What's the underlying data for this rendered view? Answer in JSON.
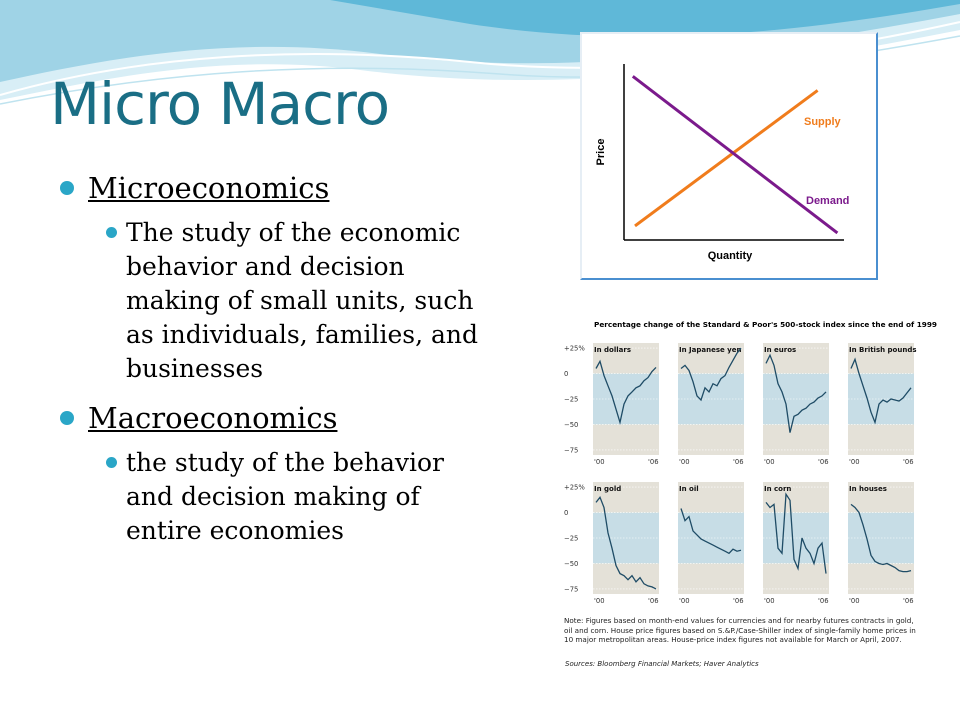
{
  "slide": {
    "title": "Micro Macro",
    "bullets": [
      {
        "heading": "Microeconomics",
        "detail": "The study of the economic behavior and decision making of small units, such as individuals, families, and businesses"
      },
      {
        "heading": "Macroeconomics",
        "detail": "the study of the behavior and decision making of entire economies"
      }
    ]
  },
  "colors": {
    "title": "#1a6e85",
    "bullet": "#2aa6c7",
    "supply": "#f07c1c",
    "demand": "#7b1a8c",
    "band": "#c7dde6",
    "panel_bg": "#e4e1d8",
    "line": "#1f4c66"
  },
  "chart_data": [
    {
      "type": "line",
      "xlabel": "Quantity",
      "ylabel": "Price",
      "series": [
        {
          "name": "Supply",
          "points": [
            [
              0.05,
              0.08
            ],
            [
              0.88,
              0.85
            ]
          ]
        },
        {
          "name": "Demand",
          "points": [
            [
              0.04,
              0.93
            ],
            [
              0.97,
              0.04
            ]
          ]
        }
      ]
    },
    {
      "type": "line",
      "title": "Percentage change of the Standard & Poor's 500-stock index since the end of 1999",
      "ytick_labels": [
        "+25%",
        "0",
        "−25",
        "−50",
        "−75"
      ],
      "ylim": [
        -80,
        30
      ],
      "xtick_labels": [
        "'00",
        "'06"
      ],
      "panels": [
        {
          "name": "In dollars",
          "values": [
            5,
            12,
            -2,
            -12,
            -22,
            -35,
            -48,
            -30,
            -22,
            -18,
            -14,
            -12,
            -7,
            -4,
            2,
            6
          ]
        },
        {
          "name": "In Japanese yen",
          "values": [
            5,
            8,
            3,
            -8,
            -22,
            -26,
            -14,
            -18,
            -10,
            -12,
            -5,
            -2,
            6,
            13,
            20,
            25
          ]
        },
        {
          "name": "In euros",
          "values": [
            10,
            18,
            8,
            -10,
            -18,
            -30,
            -58,
            -42,
            -40,
            -36,
            -34,
            -30,
            -28,
            -24,
            -22,
            -18
          ]
        },
        {
          "name": "In British pounds",
          "values": [
            5,
            14,
            0,
            -12,
            -24,
            -38,
            -48,
            -30,
            -26,
            -28,
            -25,
            -26,
            -27,
            -24,
            -19,
            -14
          ]
        },
        {
          "name": "In gold",
          "values": [
            10,
            15,
            5,
            -20,
            -35,
            -52,
            -60,
            -62,
            -66,
            -62,
            -68,
            -64,
            -70,
            -72,
            -73,
            -75
          ]
        },
        {
          "name": "In oil",
          "values": [
            4,
            -8,
            -4,
            -18,
            -22,
            -26,
            -28,
            -30,
            -32,
            -34,
            -36,
            -38,
            -40,
            -36,
            -38,
            -37
          ]
        },
        {
          "name": "In corn",
          "values": [
            10,
            5,
            8,
            -35,
            -40,
            18,
            12,
            -46,
            -55,
            -25,
            -35,
            -40,
            -50,
            -35,
            -30,
            -60
          ]
        },
        {
          "name": "In houses",
          "values": [
            8,
            5,
            0,
            -12,
            -26,
            -42,
            -48,
            -50,
            -51,
            -50,
            -52,
            -54,
            -57,
            -58,
            -58,
            -57
          ]
        }
      ],
      "notes": "Note:  Figures based on month-end values for currencies and for nearby futures contracts in gold, oil and corn. House price figures based on S.&P./Case-Shiller index of single-family home prices in 10 major metropolitan areas. House-price index figures not available for March or April, 2007.",
      "source": "Sources: Bloomberg Financial Markets; Haver Analytics"
    }
  ]
}
